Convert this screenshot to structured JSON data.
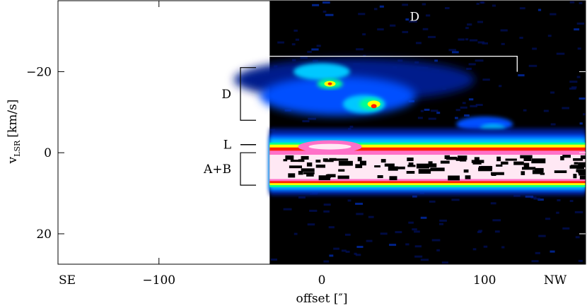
{
  "chart_data": {
    "type": "heatmap",
    "title": "",
    "xlabel": "offset [″]",
    "ylabel_main": "v",
    "ylabel_sub": "LSR",
    "ylabel_unit": "[km/s]",
    "xlim": [
      -162,
      162
    ],
    "ylim": [
      -37.5,
      27.5
    ],
    "y_inverted": true,
    "x_ticks": [
      -100,
      0,
      100
    ],
    "x_tick_labels": [
      "−100",
      "0",
      "100"
    ],
    "y_ticks": [
      -20,
      0,
      20
    ],
    "y_tick_labels": [
      "−20",
      "0",
      "20"
    ],
    "x_end_labels": {
      "left": "SE",
      "right": "NW"
    },
    "data_x_range": [
      -32,
      162
    ],
    "colormap": [
      "#000000",
      "#001a8c",
      "#0050ff",
      "#00c8ff",
      "#00ff90",
      "#ffff00",
      "#ff2000",
      "#ff70c8",
      "#ffe8f4"
    ],
    "components": [
      {
        "name": "D",
        "v_range": [
          -21,
          -8
        ]
      },
      {
        "name": "L",
        "v_range": [
          -2,
          -2
        ]
      },
      {
        "name": "A+B",
        "v_range": [
          0,
          8
        ]
      }
    ],
    "features": [
      {
        "name": "D",
        "x_range": [
          -32,
          120
        ],
        "v": -25
      }
    ],
    "grid": false
  }
}
